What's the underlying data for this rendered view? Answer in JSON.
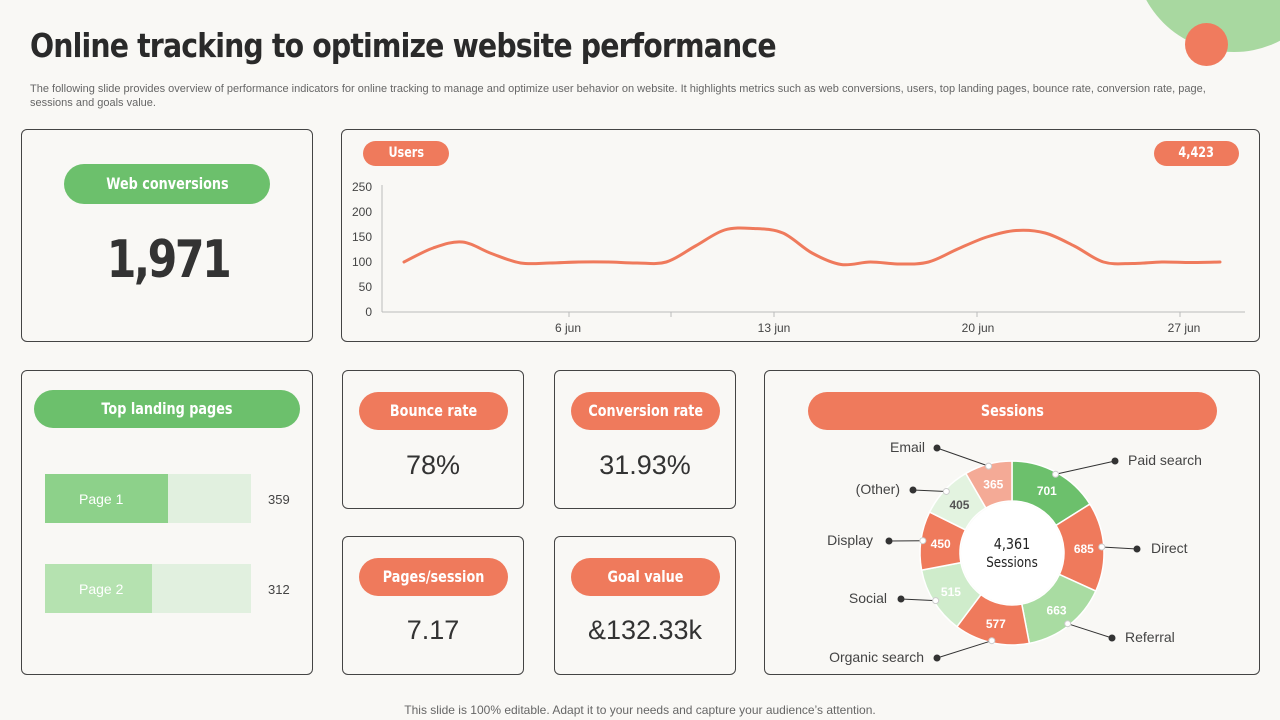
{
  "header": {
    "title": "Online tracking to optimize website performance",
    "subtitle": "The following slide provides overview of performance indicators for online tracking to manage and optimize user behavior on website. It highlights metrics such as web conversions, users, top landing pages, bounce rate, conversion rate, page, sessions and goals value."
  },
  "web_conversions": {
    "label": "Web conversions",
    "value": "1,971"
  },
  "users": {
    "label": "Users",
    "total": "4,423"
  },
  "top_landing": {
    "label": "Top landing pages",
    "pages": [
      {
        "name": "Page 1",
        "value": 359
      },
      {
        "name": "Page 2",
        "value": 312
      }
    ]
  },
  "metrics": {
    "bounce_rate": {
      "label": "Bounce rate",
      "value": "78%"
    },
    "conversion_rate": {
      "label": "Conversion rate",
      "value": "31.93%"
    },
    "pages_session": {
      "label": "Pages/session",
      "value": "7.17"
    },
    "goal_value": {
      "label": "Goal value",
      "value": "&132.33k"
    }
  },
  "sessions": {
    "label": "Sessions",
    "center_value": "4,361",
    "center_label": "Sessions"
  },
  "footer": {
    "text": "This slide is 100% editable. Adapt it to your needs and capture your audience’s attention."
  },
  "chart_data": [
    {
      "type": "line",
      "title": "Users",
      "series": [
        {
          "color": "#ef7a5c",
          "x": [
            "1 jun",
            "2 jun",
            "3 jun",
            "4 jun",
            "5 jun",
            "6 jun",
            "7 jun",
            "8 jun",
            "9 jun",
            "10 jun",
            "11 jun",
            "12 jun",
            "13 jun",
            "14 jun",
            "15 jun",
            "16 jun",
            "17 jun",
            "18 jun",
            "19 jun",
            "20 jun",
            "21 jun",
            "22 jun",
            "23 jun",
            "24 jun",
            "25 jun",
            "26 jun",
            "27 jun",
            "28 jun",
            "29 jun"
          ],
          "values": [
            100,
            128,
            140,
            117,
            98,
            98,
            100,
            100,
            98,
            100,
            132,
            164,
            167,
            158,
            118,
            95,
            100,
            96,
            100,
            126,
            150,
            163,
            158,
            132,
            100,
            97,
            100,
            99,
            100
          ]
        }
      ],
      "x_ticks": [
        "6 jun",
        "13 jun",
        "20 jun",
        "27 jun"
      ],
      "y_ticks": [
        0,
        50,
        100,
        150,
        200,
        250
      ],
      "ylim": [
        0,
        250
      ],
      "grid": false,
      "legend": "none"
    },
    {
      "type": "pie",
      "title": "Sessions",
      "total": "4,361",
      "slices": [
        {
          "label": "Paid search",
          "value": 701,
          "color": "#6cc06c"
        },
        {
          "label": "Direct",
          "value": 685,
          "color": "#ef7a5c"
        },
        {
          "label": "Referral",
          "value": 663,
          "color": "#a9dca2"
        },
        {
          "label": "Organic search",
          "value": 577,
          "color": "#ef7a5c"
        },
        {
          "label": "Social",
          "value": 515,
          "color": "#cfeccb"
        },
        {
          "label": "Display",
          "value": 450,
          "color": "#ef7a5c"
        },
        {
          "label": "(Other)",
          "value": 405,
          "color": "#e3f3e0"
        },
        {
          "label": "Email",
          "value": 365,
          "color": "#f4aa96"
        }
      ]
    }
  ]
}
